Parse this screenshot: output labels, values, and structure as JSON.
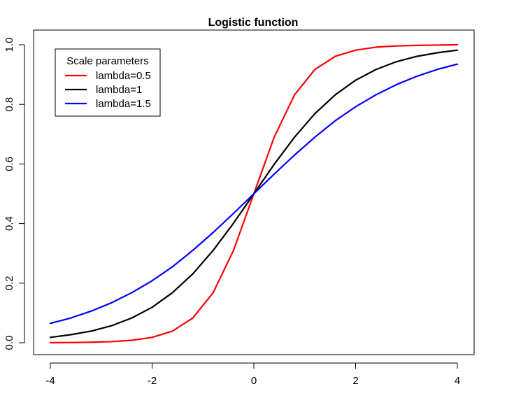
{
  "chart_data": {
    "type": "line",
    "title": "Logistic function",
    "xlabel": "",
    "ylabel": "",
    "xlim": [
      -4,
      4
    ],
    "ylim": [
      0,
      1
    ],
    "x_ticks": [
      -4,
      -2,
      0,
      2,
      4
    ],
    "x_tick_labels": [
      "-4",
      "-2",
      "0",
      "2",
      "4"
    ],
    "y_ticks": [
      0,
      0.2,
      0.4,
      0.6,
      0.8,
      1
    ],
    "y_tick_labels": [
      "0.0",
      "0.2",
      "0.4",
      "0.6",
      "0.8",
      "1.0"
    ],
    "grid": false,
    "legend": {
      "title": "Scale parameters",
      "placement": "top-left"
    },
    "x": [
      -4,
      -3.6,
      -3.2,
      -2.8,
      -2.4,
      -2,
      -1.6,
      -1.2,
      -0.8,
      -0.4,
      0,
      0.4,
      0.8,
      1.2,
      1.6,
      2,
      2.4,
      2.8,
      3.2,
      3.6,
      4
    ],
    "series": [
      {
        "name": "lambda=0.5",
        "color": "#ff0000",
        "values": [
          0.0003,
          0.0007,
          0.0017,
          0.0037,
          0.0082,
          0.018,
          0.039,
          0.083,
          0.168,
          0.31,
          0.5,
          0.69,
          0.832,
          0.917,
          0.961,
          0.982,
          0.992,
          0.996,
          0.998,
          0.999,
          1.0
        ]
      },
      {
        "name": "lambda=1",
        "color": "#000000",
        "values": [
          0.018,
          0.027,
          0.039,
          0.057,
          0.083,
          0.119,
          0.168,
          0.231,
          0.31,
          0.401,
          0.5,
          0.599,
          0.69,
          0.769,
          0.832,
          0.881,
          0.917,
          0.943,
          0.961,
          0.973,
          0.982
        ]
      },
      {
        "name": "lambda=1.5",
        "color": "#0000ff",
        "values": [
          0.065,
          0.083,
          0.106,
          0.134,
          0.168,
          0.208,
          0.255,
          0.31,
          0.37,
          0.434,
          0.5,
          0.566,
          0.63,
          0.69,
          0.745,
          0.792,
          0.832,
          0.866,
          0.894,
          0.917,
          0.935
        ]
      }
    ]
  }
}
